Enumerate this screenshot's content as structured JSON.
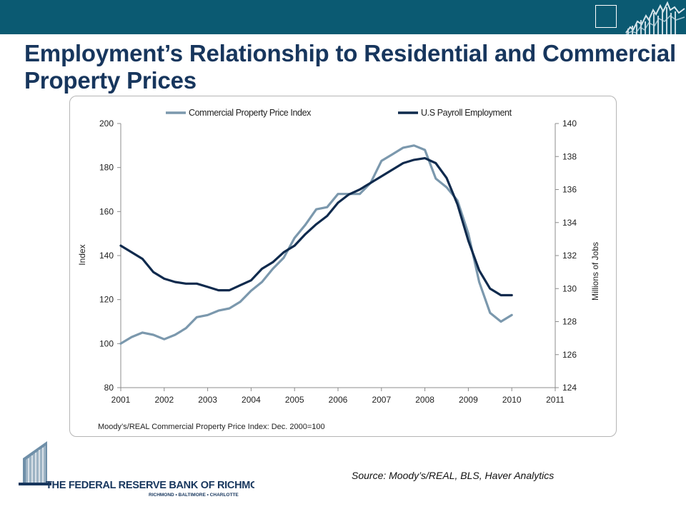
{
  "header": {
    "title": "Employment’s Relationship to Residential and Commercial Property Prices"
  },
  "colors": {
    "topbar": "#0b5a72",
    "title": "#17365d",
    "commercial_series": "#7b98ad",
    "payroll_series": "#0f2a4d"
  },
  "chart_data": {
    "type": "line",
    "legend_position": "top",
    "grid": false,
    "x_ticks": [
      "2001",
      "2002",
      "2003",
      "2004",
      "2005",
      "2006",
      "2007",
      "2008",
      "2009",
      "2010",
      "2011"
    ],
    "xlim": [
      2001,
      2011
    ],
    "left_axis": {
      "label": "Index",
      "ylim": [
        80,
        200
      ],
      "ticks": [
        "80",
        "100",
        "120",
        "140",
        "160",
        "180",
        "200"
      ]
    },
    "right_axis": {
      "label": "Millions of Jobs",
      "ylim": [
        124,
        140
      ],
      "ticks": [
        "124",
        "126",
        "128",
        "130",
        "132",
        "134",
        "136",
        "138",
        "140"
      ]
    },
    "series": [
      {
        "name": "Commercial Property Price Index",
        "axis": "left",
        "x": [
          2001,
          2001.25,
          2001.5,
          2001.75,
          2002,
          2002.25,
          2002.5,
          2002.75,
          2003,
          2003.25,
          2003.5,
          2003.75,
          2004,
          2004.25,
          2004.5,
          2004.75,
          2005,
          2005.25,
          2005.5,
          2005.75,
          2006,
          2006.25,
          2006.5,
          2006.75,
          2007,
          2007.25,
          2007.5,
          2007.75,
          2008,
          2008.25,
          2008.5,
          2008.75,
          2009,
          2009.25,
          2009.5,
          2009.75,
          2010
        ],
        "values": [
          100,
          103,
          105,
          104,
          102,
          104,
          107,
          112,
          113,
          115,
          116,
          119,
          124,
          128,
          134,
          139,
          148,
          154,
          161,
          162,
          168,
          168,
          168,
          173,
          183,
          186,
          189,
          190,
          188,
          175,
          171,
          165,
          150,
          128,
          114,
          110,
          113
        ]
      },
      {
        "name": "U.S Payroll Employment",
        "axis": "right",
        "x": [
          2001,
          2001.25,
          2001.5,
          2001.75,
          2002,
          2002.25,
          2002.5,
          2002.75,
          2003,
          2003.25,
          2003.5,
          2003.75,
          2004,
          2004.25,
          2004.5,
          2004.75,
          2005,
          2005.25,
          2005.5,
          2005.75,
          2006,
          2006.25,
          2006.5,
          2006.75,
          2007,
          2007.25,
          2007.5,
          2007.75,
          2008,
          2008.25,
          2008.5,
          2008.75,
          2009,
          2009.25,
          2009.5,
          2009.75,
          2010
        ],
        "values": [
          132.6,
          132.2,
          131.8,
          131.0,
          130.6,
          130.4,
          130.3,
          130.3,
          130.1,
          129.9,
          129.9,
          130.2,
          130.5,
          131.2,
          131.6,
          132.2,
          132.6,
          133.3,
          133.9,
          134.4,
          135.2,
          135.7,
          136.0,
          136.4,
          136.8,
          137.2,
          137.6,
          137.8,
          137.9,
          137.6,
          136.7,
          135.1,
          132.9,
          131.1,
          130.0,
          129.6,
          129.6
        ]
      }
    ],
    "note": "Moody’s/REAL Commercial Property Price Index: Dec. 2000=100"
  },
  "footer": {
    "logo_name": "THE FEDERAL RESERVE BANK OF RICHMOND",
    "logo_cities": "RICHMOND • BALTIMORE • CHARLOTTE",
    "source": "Source: Moody’s/REAL, BLS, Haver Analytics"
  }
}
